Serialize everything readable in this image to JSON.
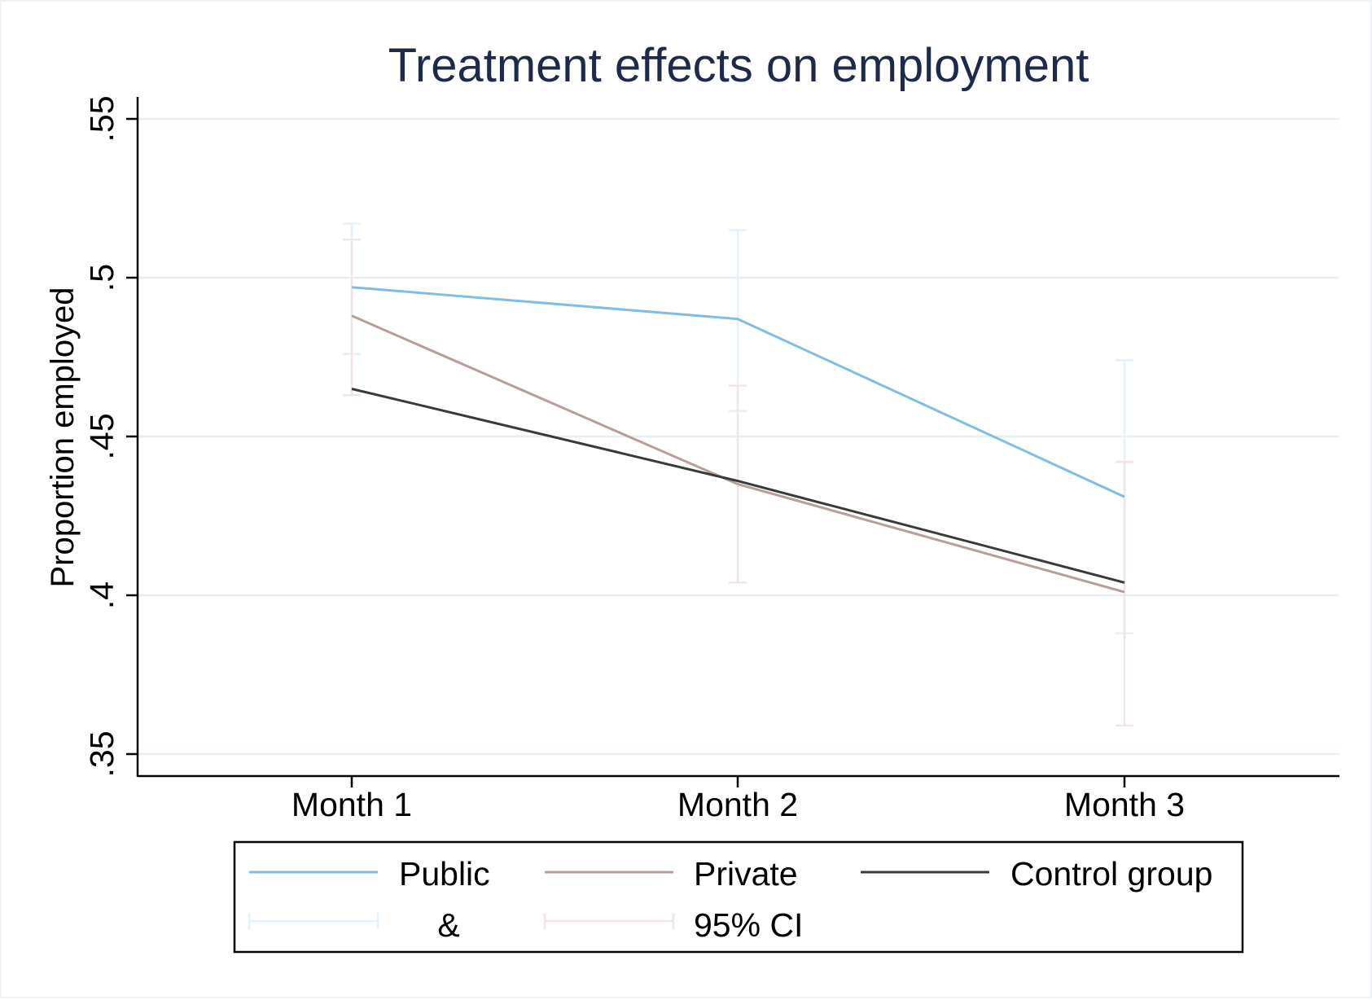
{
  "chart_data": {
    "type": "line",
    "title": "Treatment effects on employment",
    "ylabel": "Proportion employed",
    "xlabel": "",
    "categories": [
      "Month 1",
      "Month 2",
      "Month 3"
    ],
    "ylim": [
      0.343,
      0.557
    ],
    "yticks": [
      0.35,
      0.4,
      0.45,
      0.5,
      0.55
    ],
    "ytick_labels": [
      ".35",
      ".4",
      ".45",
      ".5",
      ".55"
    ],
    "grid": true,
    "legend_position": "bottom",
    "series": [
      {
        "name": "Public",
        "color": "#7fbde6",
        "ci_color": "#e3f1fa",
        "values": [
          0.497,
          0.487,
          0.431
        ],
        "ci_low": [
          0.476,
          0.458,
          0.388
        ],
        "ci_high": [
          0.517,
          0.515,
          0.474
        ]
      },
      {
        "name": "Private",
        "color": "#b89e98",
        "ci_color": "#f3e4e4",
        "values": [
          0.488,
          0.435,
          0.401
        ],
        "ci_low": [
          0.463,
          0.404,
          0.359
        ],
        "ci_high": [
          0.512,
          0.466,
          0.442
        ]
      },
      {
        "name": "Control group",
        "color": "#3a3a3a",
        "values": [
          0.465,
          0.436,
          0.404
        ]
      }
    ],
    "legend": {
      "row1": [
        "Public",
        "Private",
        "Control group"
      ],
      "row2_left": "&",
      "row2_right": "95% CI"
    }
  }
}
